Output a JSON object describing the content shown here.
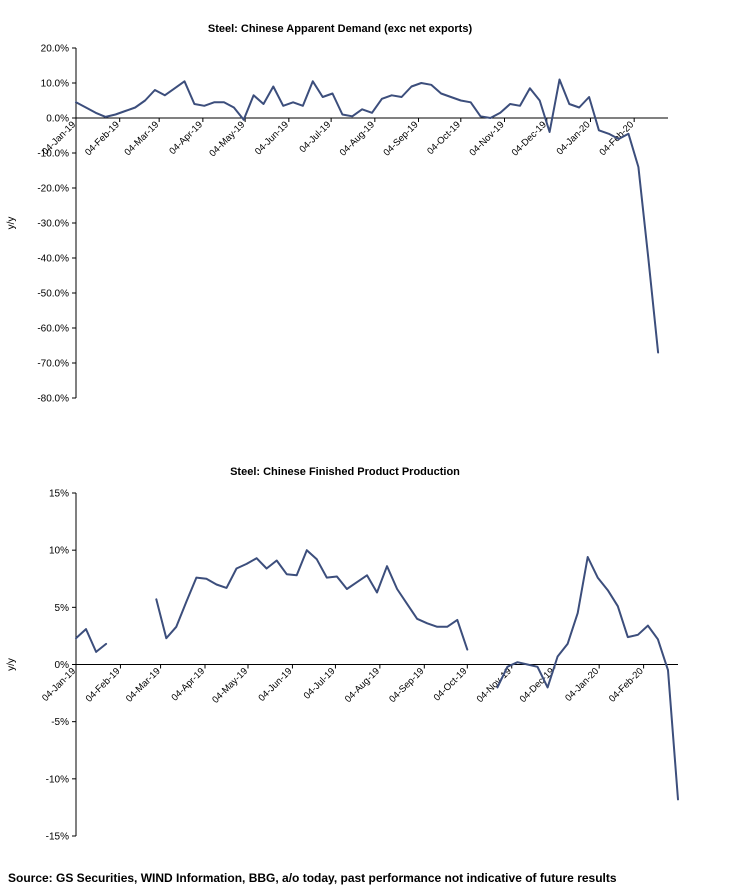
{
  "chart_data": [
    {
      "type": "line",
      "title": "Steel: Chinese Apparent Demand (exc net exports)",
      "ylabel": "y/y",
      "ylim": [
        -80,
        20
      ],
      "y_ticks": [
        20,
        10,
        0,
        -10,
        -20,
        -30,
        -40,
        -50,
        -60,
        -70,
        -80
      ],
      "y_tick_labels": [
        "20.0%",
        "10.0%",
        "0.0%",
        "-10.0%",
        "-20.0%",
        "-30.0%",
        "-40.0%",
        "-50.0%",
        "-60.0%",
        "-70.0%",
        "-80.0%"
      ],
      "x_tick_labels": [
        "04-Jan-19",
        "04-Feb-19",
        "04-Mar-19",
        "04-Apr-19",
        "04-May-19",
        "04-Jun-19",
        "04-Jul-19",
        "04-Aug-19",
        "04-Sep-19",
        "04-Oct-19",
        "04-Nov-19",
        "04-Dec-19",
        "04-Jan-20",
        "04-Feb-20"
      ],
      "grid": false,
      "series": [
        {
          "color": "#3c4e7c",
          "x": [
            "2019-01-04",
            "2019-01-11",
            "2019-01-18",
            "2019-01-25",
            "2019-02-01",
            "2019-02-08",
            "2019-02-15",
            "2019-02-22",
            "2019-03-01",
            "2019-03-08",
            "2019-03-15",
            "2019-03-22",
            "2019-03-29",
            "2019-04-05",
            "2019-04-12",
            "2019-04-19",
            "2019-04-26",
            "2019-05-03",
            "2019-05-10",
            "2019-05-17",
            "2019-05-24",
            "2019-05-31",
            "2019-06-07",
            "2019-06-14",
            "2019-06-21",
            "2019-06-28",
            "2019-07-05",
            "2019-07-12",
            "2019-07-19",
            "2019-07-26",
            "2019-08-02",
            "2019-08-09",
            "2019-08-16",
            "2019-08-23",
            "2019-08-30",
            "2019-09-06",
            "2019-09-13",
            "2019-09-20",
            "2019-09-27",
            "2019-10-04",
            "2019-10-11",
            "2019-10-18",
            "2019-10-25",
            "2019-11-01",
            "2019-11-08",
            "2019-11-15",
            "2019-11-22",
            "2019-11-29",
            "2019-12-06",
            "2019-12-13",
            "2019-12-20",
            "2019-12-27",
            "2020-01-03",
            "2020-01-10",
            "2020-01-17",
            "2020-01-24",
            "2020-01-31",
            "2020-02-07",
            "2020-02-14",
            "2020-02-21"
          ],
          "values": [
            4.5,
            3,
            1.5,
            0.3,
            1,
            2,
            3,
            5,
            8,
            6.5,
            8.5,
            10.5,
            4,
            3.5,
            4.5,
            4.5,
            3,
            -0.5,
            6.5,
            4,
            9,
            3.5,
            4.5,
            3.5,
            10.5,
            6,
            7,
            1,
            0.5,
            2.5,
            1.5,
            5.5,
            6.5,
            6,
            9,
            10,
            9.5,
            7,
            6,
            5,
            4.5,
            0.5,
            0,
            1.5,
            4,
            3.5,
            8.5,
            5,
            -4,
            11,
            4,
            3,
            6,
            -3.5,
            -4.5,
            -6,
            -4.5,
            -14,
            -40,
            -67
          ]
        }
      ]
    },
    {
      "type": "line",
      "title": "Steel: Chinese Finished Product Production",
      "ylabel": "y/y",
      "ylim": [
        -15,
        15
      ],
      "y_ticks": [
        15,
        10,
        5,
        0,
        -5,
        -10,
        -15
      ],
      "y_tick_labels": [
        "15%",
        "10%",
        "5%",
        "0%",
        "-5%",
        "-10%",
        "-15%"
      ],
      "x_tick_labels": [
        "04-Jan-19",
        "04-Feb-19",
        "04-Mar-19",
        "04-Apr-19",
        "04-May-19",
        "04-Jun-19",
        "04-Jul-19",
        "04-Aug-19",
        "04-Sep-19",
        "04-Oct-19",
        "04-Nov-19",
        "04-Dec-19",
        "04-Jan-20",
        "04-Feb-20"
      ],
      "grid": false,
      "series": [
        {
          "color": "#3c4e7c",
          "segments": [
            {
              "x": [
                "2019-01-04",
                "2019-01-11",
                "2019-01-18",
                "2019-01-25"
              ],
              "values": [
                2.3,
                3.1,
                1.1,
                1.8
              ]
            },
            {
              "x": [
                "2019-03-01",
                "2019-03-08",
                "2019-03-15",
                "2019-03-22",
                "2019-03-29",
                "2019-04-05",
                "2019-04-12",
                "2019-04-19",
                "2019-04-26",
                "2019-05-03",
                "2019-05-10",
                "2019-05-17",
                "2019-05-24",
                "2019-05-31",
                "2019-06-07",
                "2019-06-14",
                "2019-06-21",
                "2019-06-28",
                "2019-07-05",
                "2019-07-12",
                "2019-07-19",
                "2019-07-26",
                "2019-08-02",
                "2019-08-09",
                "2019-08-16",
                "2019-08-23",
                "2019-08-30",
                "2019-09-06",
                "2019-09-13",
                "2019-09-20",
                "2019-09-27",
                "2019-10-04"
              ],
              "values": [
                5.7,
                2.3,
                3.3,
                5.5,
                7.6,
                7.5,
                7,
                6.7,
                8.4,
                8.8,
                9.3,
                8.4,
                9.1,
                7.9,
                7.8,
                10,
                9.2,
                7.6,
                7.7,
                6.6,
                7.2,
                7.8,
                6.3,
                8.6,
                6.6,
                5.3,
                4,
                3.6,
                3.3,
                3.3,
                3.9,
                1.3
              ]
            },
            {
              "x": [
                "2019-10-25",
                "2019-11-01",
                "2019-11-08",
                "2019-11-15",
                "2019-11-22",
                "2019-11-29",
                "2019-12-06",
                "2019-12-13",
                "2019-12-20",
                "2019-12-27",
                "2020-01-03",
                "2020-01-10",
                "2020-01-17",
                "2020-01-24",
                "2020-01-31",
                "2020-02-07",
                "2020-02-14",
                "2020-02-21"
              ],
              "values": [
                -2.0,
                -0.2,
                0.2,
                0,
                -0.2,
                -2.0,
                0.7,
                1.8,
                4.5,
                9.4,
                7.6,
                6.5,
                5.1,
                2.4,
                2.6,
                3.4,
                2.2,
                -0.5
              ]
            },
            {
              "x": [
                "2020-02-21",
                "2020-02-28"
              ],
              "values": [
                -0.5,
                -11.8
              ]
            }
          ]
        }
      ]
    }
  ],
  "footer": {
    "source": "Source: GS Securities, WIND Information, BBG, a/o today, past performance not indicative of future results"
  }
}
